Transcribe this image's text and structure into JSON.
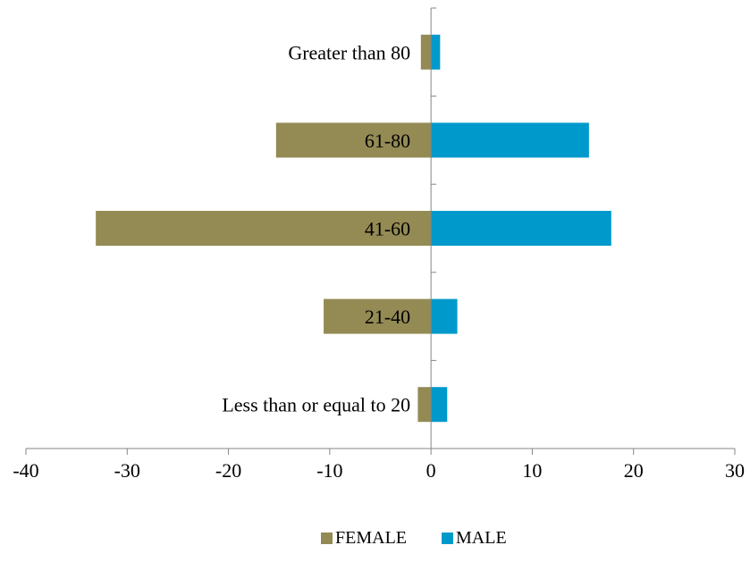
{
  "chart_data": {
    "type": "bar",
    "orientation": "horizontal",
    "layout": "population-pyramid",
    "categories": [
      "Less than or equal to 20",
      "21-40",
      "41-60",
      "61-80",
      "Greater than 80"
    ],
    "series": [
      {
        "name": "FEMALE",
        "values": [
          -1.3,
          -10.6,
          -33.1,
          -15.3,
          -1.0
        ],
        "color": "#948A54"
      },
      {
        "name": "MALE",
        "values": [
          1.6,
          2.6,
          17.8,
          15.6,
          0.9
        ],
        "color": "#0099CC"
      }
    ],
    "xlim": [
      -40,
      30
    ],
    "xticks": [
      -40,
      -30,
      -20,
      -10,
      0,
      10,
      20,
      30
    ],
    "grid": false,
    "legend_position": "bottom",
    "xlabel": "",
    "ylabel": "",
    "title": ""
  }
}
